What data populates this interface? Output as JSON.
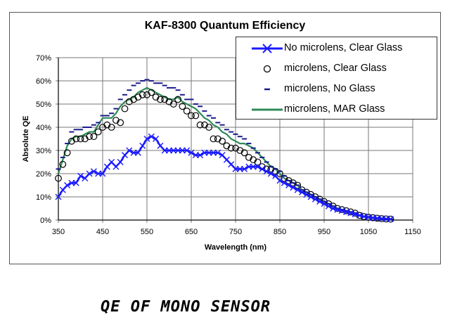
{
  "chart_data": {
    "type": "line",
    "title": "KAF-8300 Quantum Efficiency",
    "xlabel": "Wavelength (nm)",
    "ylabel": "Absolute QE",
    "xlim": [
      350,
      1150
    ],
    "ylim": [
      0,
      70
    ],
    "x_ticks": [
      "350",
      "450",
      "550",
      "650",
      "750",
      "850",
      "950",
      "1050",
      "1150"
    ],
    "y_ticks": [
      "0%",
      "10%",
      "20%",
      "30%",
      "40%",
      "50%",
      "60%",
      "70%"
    ],
    "grid": true,
    "legend_position": "top-right",
    "x": [
      350,
      360,
      370,
      380,
      390,
      400,
      410,
      420,
      430,
      440,
      450,
      460,
      470,
      480,
      490,
      500,
      510,
      520,
      530,
      540,
      550,
      560,
      570,
      580,
      590,
      600,
      610,
      620,
      630,
      640,
      650,
      660,
      670,
      680,
      690,
      700,
      710,
      720,
      730,
      740,
      750,
      760,
      770,
      780,
      790,
      800,
      810,
      820,
      830,
      840,
      850,
      860,
      870,
      880,
      890,
      900,
      910,
      920,
      930,
      940,
      950,
      960,
      970,
      980,
      990,
      1000,
      1010,
      1020,
      1030,
      1040,
      1050,
      1060,
      1070,
      1080,
      1090,
      1100
    ],
    "series": [
      {
        "name": "No microlens, Clear Glass",
        "color": "#1a1aff",
        "marker": "x",
        "values": [
          10,
          13,
          15,
          16,
          16,
          19,
          18,
          20,
          21,
          20,
          20,
          23,
          25,
          23,
          25,
          28,
          30,
          29,
          29,
          32,
          35,
          36,
          35,
          32,
          30,
          30,
          30,
          30,
          30,
          30,
          29,
          28,
          28,
          29,
          29,
          29,
          29,
          28,
          26,
          24,
          22,
          22,
          22,
          23,
          23,
          23,
          22,
          21,
          20,
          19,
          17,
          16,
          15,
          14,
          13,
          12,
          11,
          10,
          9,
          8,
          7,
          6,
          5,
          4.5,
          4,
          3.5,
          3,
          2.5,
          2,
          1.5,
          1.2,
          1,
          0.8,
          0.6,
          0.5,
          0.4
        ]
      },
      {
        "name": "microlens, Clear Glass",
        "color": "#000000",
        "marker": "circle",
        "values": [
          18,
          24,
          29,
          34,
          35,
          35,
          35,
          36,
          36,
          38,
          40,
          41,
          40,
          43,
          42,
          48,
          51,
          52,
          53,
          54,
          54,
          55,
          53,
          52,
          52,
          51,
          50,
          52,
          49,
          47,
          45,
          45,
          41,
          41,
          40,
          35,
          35,
          34,
          32,
          31,
          31,
          30,
          29,
          27,
          26,
          25,
          23,
          22,
          22,
          21,
          20,
          18,
          17,
          16,
          15,
          13,
          12,
          11,
          10,
          9,
          8,
          7,
          6,
          5,
          4.5,
          4,
          3.5,
          3,
          2,
          1.5,
          1.2,
          1,
          0.8,
          0.6,
          0.5,
          0.4
        ]
      },
      {
        "name": "microlens, No Glass",
        "color": "#1a1a8c",
        "marker": "dash",
        "values": [
          22,
          27,
          33,
          38,
          39,
          39,
          40,
          40,
          41,
          42,
          45,
          45,
          46,
          48,
          52,
          54,
          56,
          58,
          59,
          60,
          60.5,
          60,
          59,
          59,
          58,
          57,
          57,
          56,
          54,
          52,
          52,
          50,
          49,
          47,
          45,
          44,
          42,
          41,
          39,
          38,
          37,
          36,
          35,
          33,
          31,
          29,
          27,
          25,
          23,
          22,
          21,
          19,
          17,
          16,
          15,
          13,
          12,
          11,
          10,
          9,
          8,
          7,
          6,
          5,
          4.5,
          4,
          3.5,
          3,
          2,
          1.5,
          1.2,
          1,
          0.8,
          0.6,
          0.5,
          0.4
        ]
      },
      {
        "name": "microlens, MAR Glass",
        "color": "#2e8b57",
        "marker": "none",
        "values": [
          20,
          26,
          32,
          35,
          36,
          36,
          37,
          38,
          38,
          41,
          44,
          44,
          44,
          46,
          49,
          51,
          52,
          53,
          55,
          56,
          57,
          56,
          55,
          54,
          53,
          52,
          52,
          53,
          51,
          50,
          49,
          48,
          46,
          44,
          43,
          41,
          40,
          38,
          37,
          35,
          34,
          33,
          33,
          32,
          31,
          29,
          27,
          25,
          23,
          22,
          20,
          18,
          17,
          16,
          15,
          13,
          12,
          11,
          10,
          9,
          8,
          7,
          6,
          5,
          4.5,
          4,
          3.5,
          3,
          2,
          1.5,
          1.2,
          1,
          0.8,
          0.6,
          0.5,
          0.4
        ]
      }
    ]
  },
  "caption": "QE OF MONO SENSOR"
}
